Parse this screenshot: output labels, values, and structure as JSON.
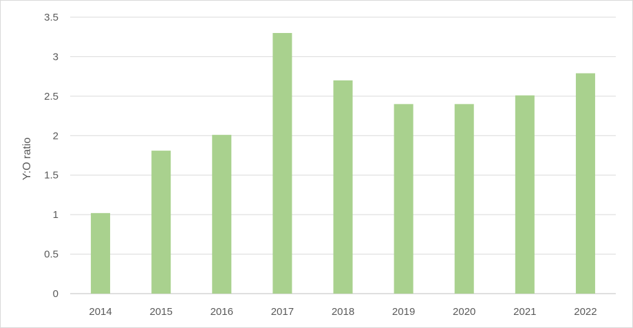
{
  "chart_data": {
    "type": "bar",
    "title": "",
    "xlabel": "",
    "ylabel": "Y:O ratio",
    "categories": [
      "2014",
      "2015",
      "2016",
      "2017",
      "2018",
      "2019",
      "2020",
      "2021",
      "2022"
    ],
    "series": [
      {
        "values": [
          1.02,
          1.81,
          2.01,
          3.3,
          2.7,
          2.4,
          2.4,
          2.51,
          2.79
        ]
      }
    ],
    "ylim": [
      0,
      3.5
    ],
    "yticks": [
      "0",
      "0.5",
      "1",
      "1.5",
      "2",
      "2.5",
      "3",
      "3.5"
    ],
    "grid": true,
    "legend": "none",
    "colors": {
      "bar": "#a9d18e",
      "grid": "#d9d9d9",
      "axis": "#bfbfbf",
      "text": "#595959"
    }
  }
}
